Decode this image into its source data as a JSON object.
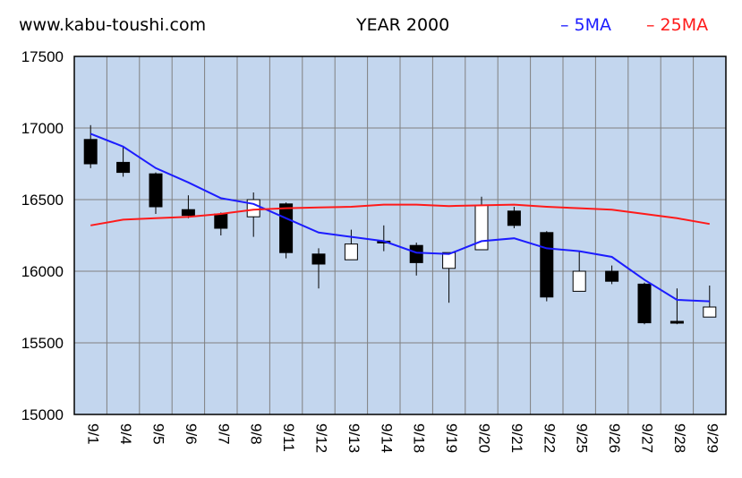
{
  "header": {
    "site": "www.kabu-toushi.com",
    "title": "YEAR 2000"
  },
  "chart_data": {
    "type": "candlestick",
    "title": "YEAR 2000",
    "ylim": [
      15000,
      17500
    ],
    "yticks": [
      15000,
      15500,
      16000,
      16500,
      17000,
      17500
    ],
    "grid": true,
    "legend_position": "top-right",
    "categories": [
      "9/1",
      "9/4",
      "9/5",
      "9/6",
      "9/7",
      "9/8",
      "9/11",
      "9/12",
      "9/13",
      "9/14",
      "9/18",
      "9/19",
      "9/20",
      "9/21",
      "9/22",
      "9/25",
      "9/26",
      "9/27",
      "9/28",
      "9/29"
    ],
    "candles": [
      {
        "open": 16920,
        "high": 17020,
        "low": 16720,
        "close": 16750
      },
      {
        "open": 16760,
        "high": 16870,
        "low": 16660,
        "close": 16690
      },
      {
        "open": 16680,
        "high": 16690,
        "low": 16400,
        "close": 16450
      },
      {
        "open": 16430,
        "high": 16530,
        "low": 16370,
        "close": 16390
      },
      {
        "open": 16400,
        "high": 16410,
        "low": 16250,
        "close": 16300
      },
      {
        "open": 16380,
        "high": 16550,
        "low": 16240,
        "close": 16500
      },
      {
        "open": 16470,
        "high": 16480,
        "low": 16090,
        "close": 16130
      },
      {
        "open": 16120,
        "high": 16160,
        "low": 15880,
        "close": 16050
      },
      {
        "open": 16080,
        "high": 16290,
        "low": 16080,
        "close": 16190
      },
      {
        "open": 16210,
        "high": 16320,
        "low": 16140,
        "close": 16200
      },
      {
        "open": 16180,
        "high": 16200,
        "low": 15970,
        "close": 16060
      },
      {
        "open": 16020,
        "high": 16120,
        "low": 15780,
        "close": 16130
      },
      {
        "open": 16150,
        "high": 16520,
        "low": 16150,
        "close": 16460
      },
      {
        "open": 16420,
        "high": 16450,
        "low": 16300,
        "close": 16320
      },
      {
        "open": 16270,
        "high": 16280,
        "low": 15790,
        "close": 15820
      },
      {
        "open": 15860,
        "high": 16140,
        "low": 15860,
        "close": 16000
      },
      {
        "open": 16000,
        "high": 16040,
        "low": 15910,
        "close": 15930
      },
      {
        "open": 15910,
        "high": 15920,
        "low": 15630,
        "close": 15640
      },
      {
        "open": 15650,
        "high": 15880,
        "low": 15630,
        "close": 15640
      },
      {
        "open": 15680,
        "high": 15900,
        "low": 15680,
        "close": 15750
      }
    ],
    "series": [
      {
        "name": "5MA",
        "color": "#1c1cff",
        "values": [
          16960,
          16870,
          16720,
          16620,
          16510,
          16470,
          16370,
          16270,
          16240,
          16210,
          16130,
          16120,
          16210,
          16230,
          16160,
          16140,
          16100,
          15940,
          15800,
          15790
        ]
      },
      {
        "name": "25MA",
        "color": "#ff1a1a",
        "values": [
          16320,
          16360,
          16370,
          16380,
          16400,
          16430,
          16440,
          16445,
          16450,
          16465,
          16465,
          16455,
          16460,
          16465,
          16450,
          16440,
          16430,
          16400,
          16370,
          16330
        ]
      }
    ],
    "colors": {
      "plot_bg": "#c3d6ee",
      "frame": "#000000",
      "grid": "#808080",
      "bear_candle": "#000000",
      "bull_candle": "#ffffff"
    }
  }
}
